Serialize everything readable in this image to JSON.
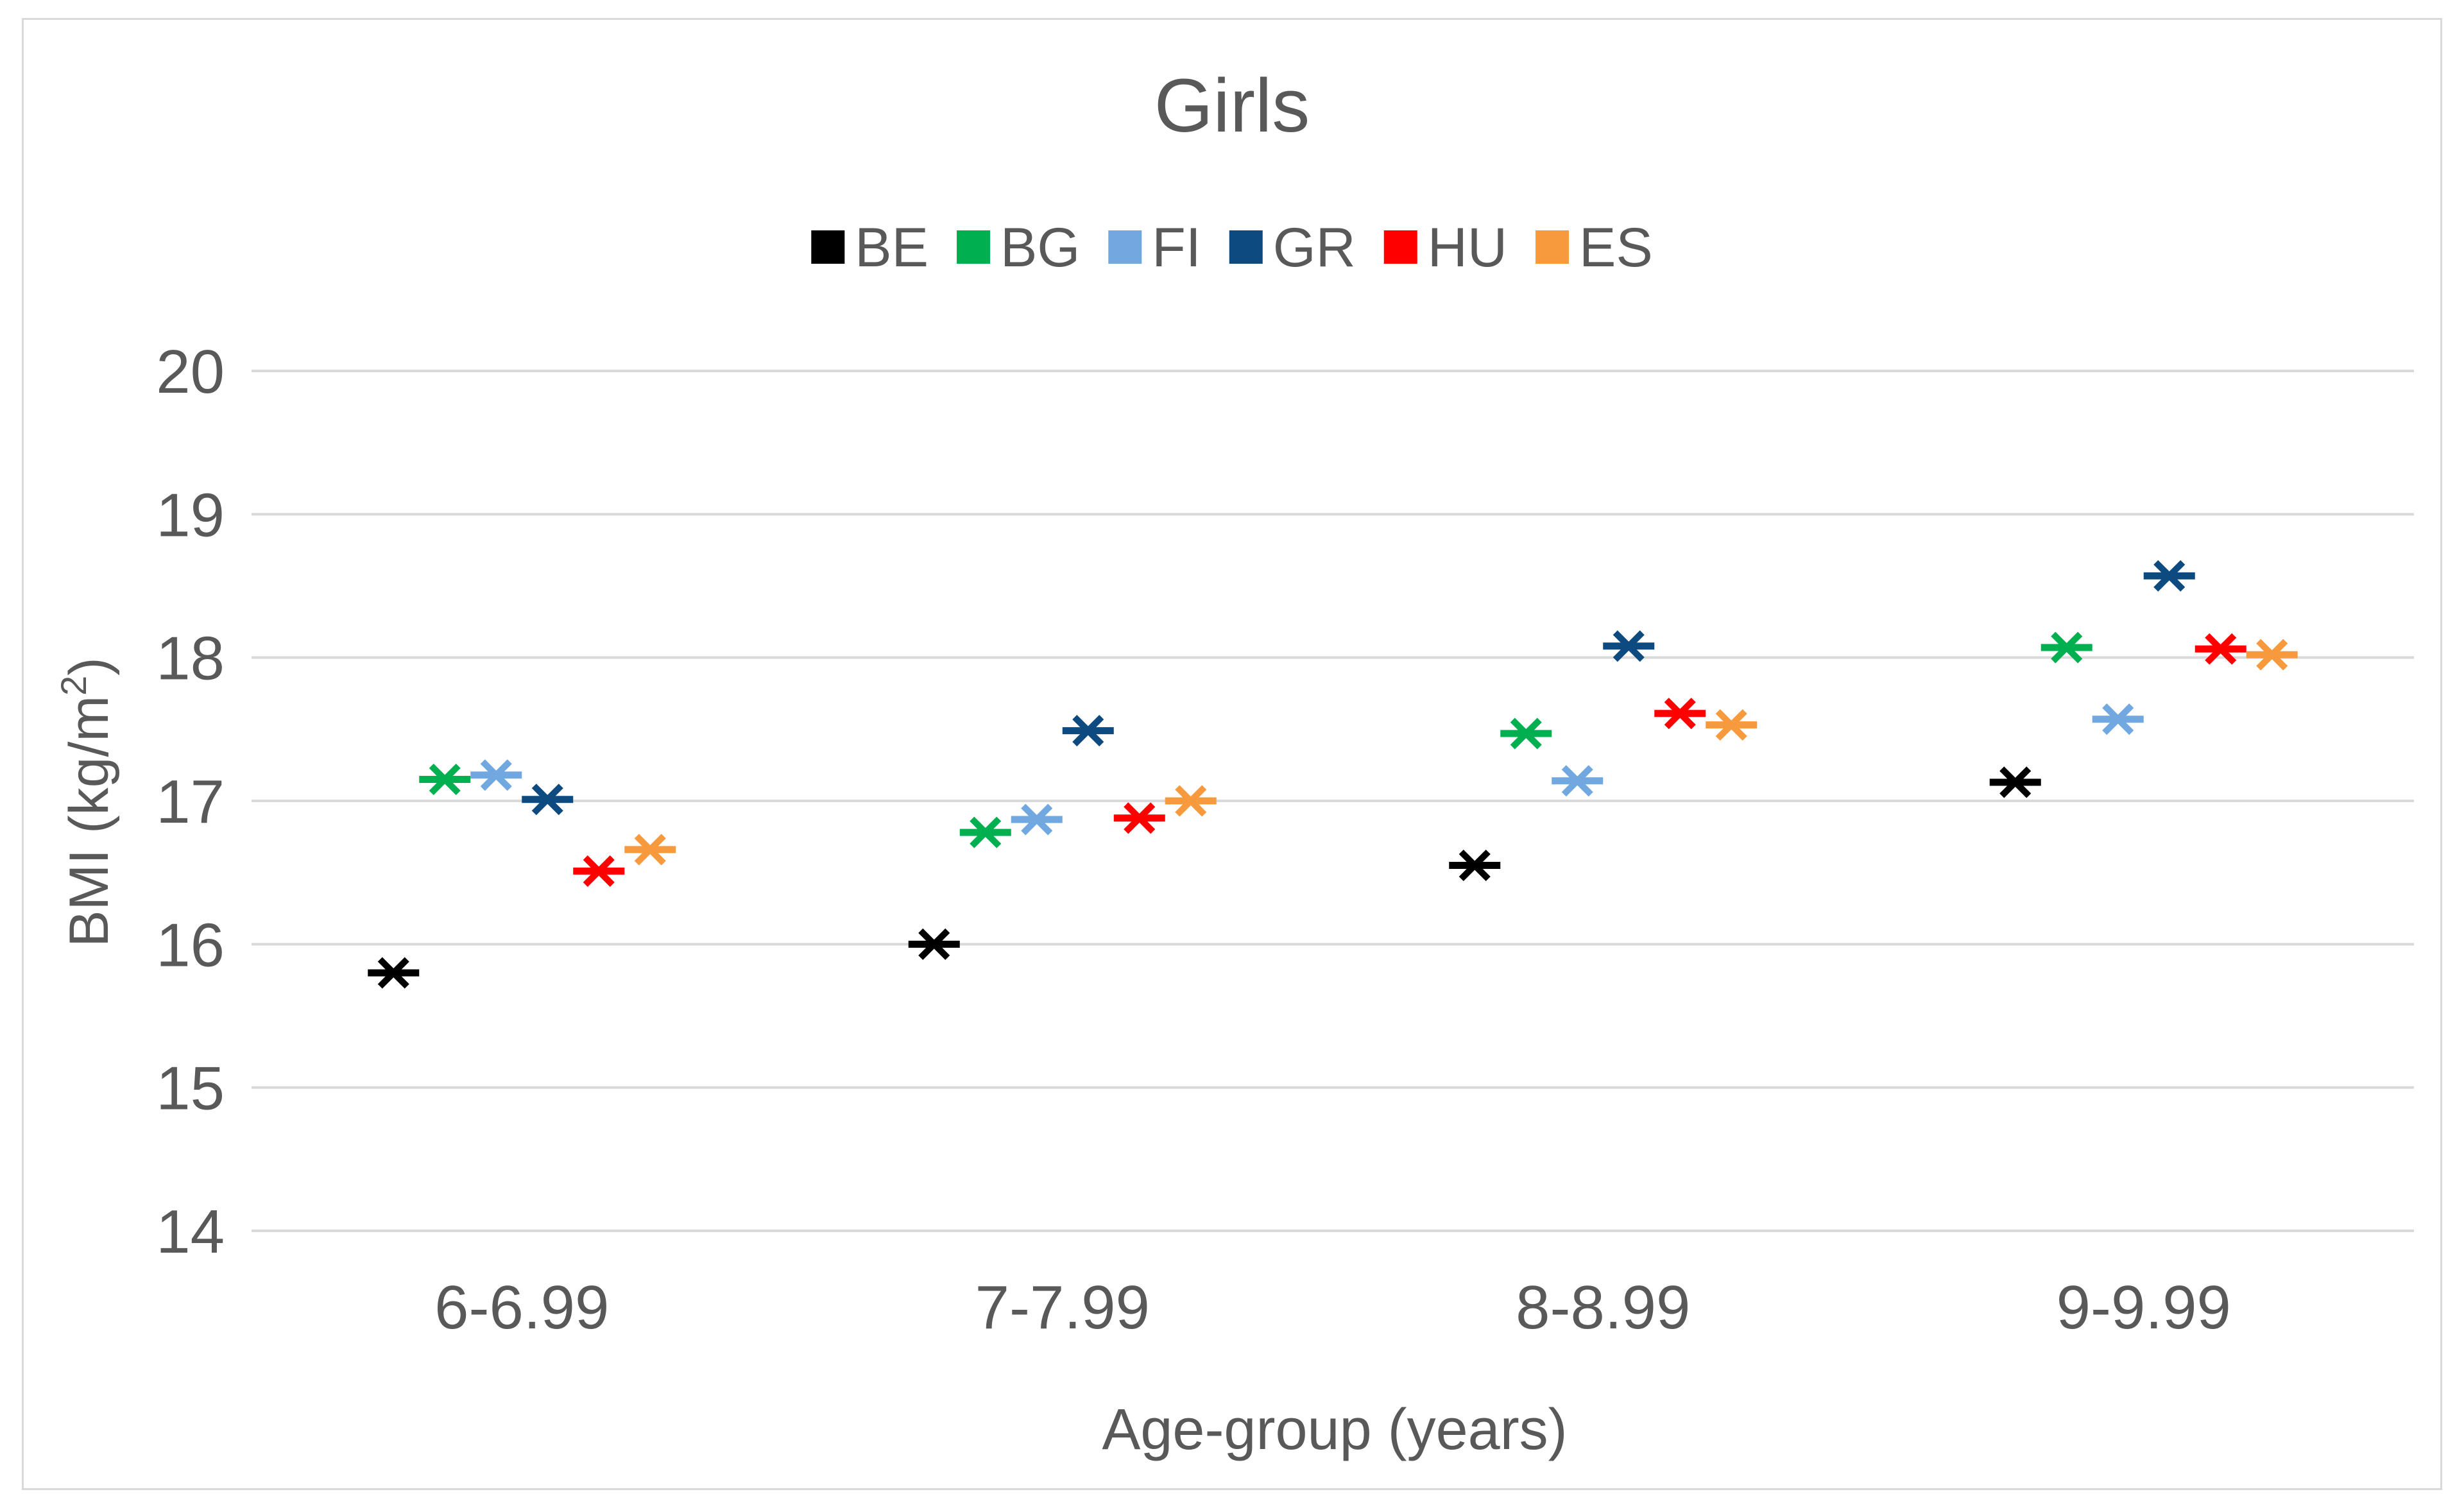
{
  "chart_data": {
    "type": "scatter",
    "title": "Girls",
    "xlabel": "Age-group  (years)",
    "ylabel": "BMI (kg/m",
    "ylabel_superscript": "2",
    "ylabel_suffix": ")",
    "ylim": [
      14,
      20
    ],
    "yticks": [
      "14",
      "15",
      "16",
      "17",
      "18",
      "19",
      "20"
    ],
    "categories": [
      "6-6.99",
      "7-7.99",
      "8-8.99",
      "9-9.99"
    ],
    "legend_position": "top-center",
    "grid": true,
    "series": [
      {
        "name": "BE",
        "color": "#000000",
        "values": [
          15.8,
          16.0,
          16.55,
          17.13
        ]
      },
      {
        "name": "BG",
        "color": "#00b050",
        "values": [
          17.15,
          16.78,
          17.47,
          18.07
        ]
      },
      {
        "name": "FI",
        "color": "#71a8e0",
        "values": [
          17.18,
          16.87,
          17.14,
          17.57
        ]
      },
      {
        "name": "GR",
        "color": "#0d4a80",
        "values": [
          17.01,
          17.49,
          18.08,
          18.57
        ]
      },
      {
        "name": "HU",
        "color": "#ff0000",
        "values": [
          16.51,
          16.88,
          17.61,
          18.06
        ]
      },
      {
        "name": "ES",
        "color": "#f79a3e",
        "values": [
          16.66,
          17.0,
          17.53,
          18.02
        ]
      }
    ]
  }
}
